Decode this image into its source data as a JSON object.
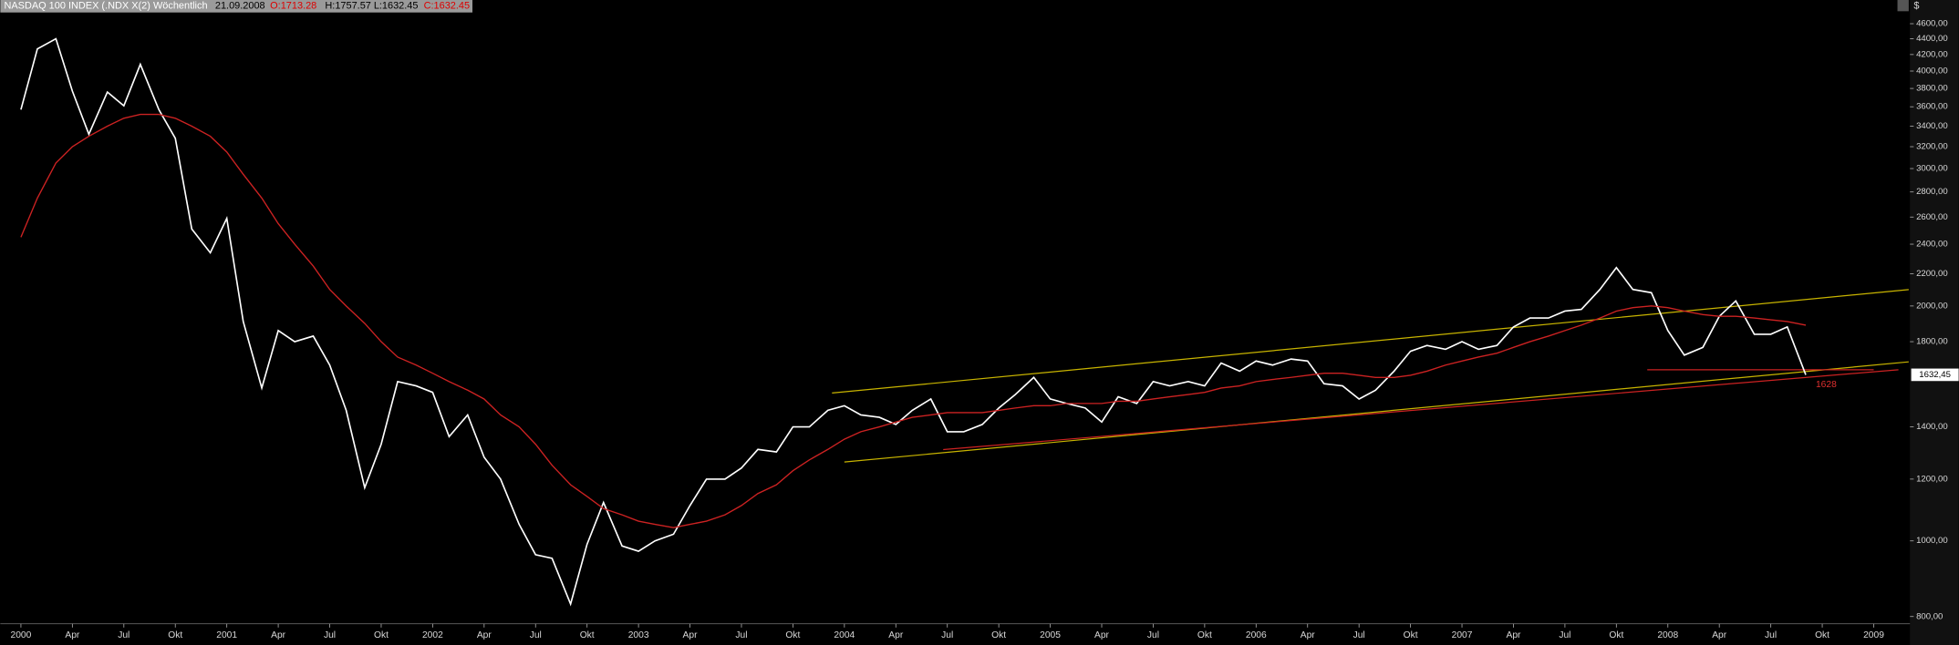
{
  "chart_data": {
    "type": "line",
    "header": [
      "NASDAQ 100 INDEX (.NDX X(2)  Wöchentlich",
      "21.09.2008",
      "O:1713.28",
      "H:1757.57",
      "L:1632.45",
      "C:1632.45"
    ],
    "currency": "$",
    "last_label": "1632,45",
    "annotation": "1628",
    "log_scale": true,
    "xlim": [
      1999.9,
      2009.17
    ],
    "ylim": [
      783,
      4790
    ],
    "xticks": [
      {
        "value": 2000,
        "label": "2000"
      },
      {
        "value": 2000.25,
        "label": "Apr"
      },
      {
        "value": 2000.5,
        "label": "Jul"
      },
      {
        "value": 2000.75,
        "label": "Okt"
      },
      {
        "value": 2001,
        "label": "2001"
      },
      {
        "value": 2001.25,
        "label": "Apr"
      },
      {
        "value": 2001.5,
        "label": "Jul"
      },
      {
        "value": 2001.75,
        "label": "Okt"
      },
      {
        "value": 2002,
        "label": "2002"
      },
      {
        "value": 2002.25,
        "label": "Apr"
      },
      {
        "value": 2002.5,
        "label": "Jul"
      },
      {
        "value": 2002.75,
        "label": "Okt"
      },
      {
        "value": 2003,
        "label": "2003"
      },
      {
        "value": 2003.25,
        "label": "Apr"
      },
      {
        "value": 2003.5,
        "label": "Jul"
      },
      {
        "value": 2003.75,
        "label": "Okt"
      },
      {
        "value": 2004,
        "label": "2004"
      },
      {
        "value": 2004.25,
        "label": "Apr"
      },
      {
        "value": 2004.5,
        "label": "Jul"
      },
      {
        "value": 2004.75,
        "label": "Okt"
      },
      {
        "value": 2005,
        "label": "2005"
      },
      {
        "value": 2005.25,
        "label": "Apr"
      },
      {
        "value": 2005.5,
        "label": "Jul"
      },
      {
        "value": 2005.75,
        "label": "Okt"
      },
      {
        "value": 2006,
        "label": "2006"
      },
      {
        "value": 2006.25,
        "label": "Apr"
      },
      {
        "value": 2006.5,
        "label": "Jul"
      },
      {
        "value": 2006.75,
        "label": "Okt"
      },
      {
        "value": 2007,
        "label": "2007"
      },
      {
        "value": 2007.25,
        "label": "Apr"
      },
      {
        "value": 2007.5,
        "label": "Jul"
      },
      {
        "value": 2007.75,
        "label": "Okt"
      },
      {
        "value": 2008,
        "label": "2008"
      },
      {
        "value": 2008.25,
        "label": "Apr"
      },
      {
        "value": 2008.5,
        "label": "Jul"
      },
      {
        "value": 2008.75,
        "label": "Okt"
      },
      {
        "value": 2009,
        "label": "2009"
      }
    ],
    "yticks": [
      {
        "value": 800,
        "label": "800,00"
      },
      {
        "value": 1000,
        "label": "1000,00"
      },
      {
        "value": 1200,
        "label": "1200,00"
      },
      {
        "value": 1400,
        "label": "1400,00"
      },
      {
        "value": 1800,
        "label": "1800,00"
      },
      {
        "value": 2000,
        "label": "2000,00"
      },
      {
        "value": 2200,
        "label": "2200,00"
      },
      {
        "value": 2400,
        "label": "2400,00"
      },
      {
        "value": 2600,
        "label": "2600,00"
      },
      {
        "value": 2800,
        "label": "2800,00"
      },
      {
        "value": 3000,
        "label": "3000,00"
      },
      {
        "value": 3200,
        "label": "3200,00"
      },
      {
        "value": 3400,
        "label": "3400,00"
      },
      {
        "value": 3600,
        "label": "3600,00"
      },
      {
        "value": 3800,
        "label": "3800,00"
      },
      {
        "value": 4000,
        "label": "4000,00"
      },
      {
        "value": 4200,
        "label": "4200,00"
      },
      {
        "value": 4400,
        "label": "4400,00"
      },
      {
        "value": 4600,
        "label": "4600,00"
      }
    ],
    "x": [
      2000,
      2000.08,
      2000.17,
      2000.25,
      2000.33,
      2000.42,
      2000.5,
      2000.58,
      2000.67,
      2000.75,
      2000.83,
      2000.92,
      2001,
      2001.08,
      2001.17,
      2001.25,
      2001.33,
      2001.42,
      2001.5,
      2001.58,
      2001.67,
      2001.75,
      2001.83,
      2001.92,
      2002,
      2002.08,
      2002.17,
      2002.25,
      2002.33,
      2002.42,
      2002.5,
      2002.58,
      2002.67,
      2002.75,
      2002.83,
      2002.92,
      2003,
      2003.08,
      2003.17,
      2003.25,
      2003.33,
      2003.42,
      2003.5,
      2003.58,
      2003.67,
      2003.75,
      2003.83,
      2003.92,
      2004,
      2004.08,
      2004.17,
      2004.25,
      2004.33,
      2004.42,
      2004.5,
      2004.58,
      2004.67,
      2004.75,
      2004.83,
      2004.92,
      2005,
      2005.08,
      2005.17,
      2005.25,
      2005.33,
      2005.42,
      2005.5,
      2005.58,
      2005.67,
      2005.75,
      2005.83,
      2005.92,
      2006,
      2006.08,
      2006.17,
      2006.25,
      2006.33,
      2006.42,
      2006.5,
      2006.58,
      2006.67,
      2006.75,
      2006.83,
      2006.92,
      2007,
      2007.08,
      2007.17,
      2007.25,
      2007.33,
      2007.42,
      2007.5,
      2007.58,
      2007.67,
      2007.75,
      2007.83,
      2007.92,
      2008,
      2008.08,
      2008.17,
      2008.25,
      2008.33,
      2008.42,
      2008.5,
      2008.58,
      2008.67
    ],
    "series": [
      {
        "color": "#ffffff",
        "values": [
          3570,
          4270,
          4400,
          3770,
          3320,
          3760,
          3610,
          4080,
          3570,
          3280,
          2510,
          2340,
          2590,
          1910,
          1570,
          1860,
          1800,
          1830,
          1680,
          1470,
          1170,
          1330,
          1600,
          1580,
          1550,
          1360,
          1450,
          1280,
          1200,
          1050,
          960,
          950,
          830,
          990,
          1120,
          985,
          970,
          1000,
          1020,
          1110,
          1200,
          1200,
          1240,
          1310,
          1300,
          1400,
          1400,
          1470,
          1490,
          1450,
          1440,
          1410,
          1470,
          1520,
          1380,
          1380,
          1410,
          1480,
          1540,
          1620,
          1520,
          1500,
          1480,
          1420,
          1530,
          1500,
          1600,
          1580,
          1600,
          1580,
          1690,
          1650,
          1700,
          1680,
          1710,
          1700,
          1590,
          1580,
          1520,
          1560,
          1650,
          1750,
          1780,
          1760,
          1800,
          1760,
          1780,
          1880,
          1930,
          1930,
          1970,
          1980,
          2100,
          2240,
          2100,
          2080,
          1860,
          1730,
          1770,
          1940,
          2030,
          1840,
          1840,
          1880,
          1632.45
        ]
      },
      {
        "color": "#cc2222",
        "values": [
          2450,
          2750,
          3050,
          3200,
          3300,
          3400,
          3480,
          3520,
          3520,
          3480,
          3400,
          3300,
          3150,
          2950,
          2750,
          2550,
          2400,
          2250,
          2100,
          2000,
          1900,
          1800,
          1720,
          1680,
          1640,
          1600,
          1560,
          1520,
          1450,
          1400,
          1330,
          1250,
          1180,
          1140,
          1100,
          1080,
          1060,
          1050,
          1040,
          1050,
          1060,
          1080,
          1110,
          1150,
          1180,
          1230,
          1270,
          1310,
          1350,
          1380,
          1400,
          1420,
          1440,
          1450,
          1460,
          1460,
          1460,
          1470,
          1480,
          1490,
          1490,
          1500,
          1500,
          1500,
          1510,
          1510,
          1520,
          1530,
          1540,
          1550,
          1570,
          1580,
          1600,
          1610,
          1620,
          1630,
          1640,
          1640,
          1630,
          1620,
          1620,
          1630,
          1650,
          1680,
          1700,
          1720,
          1740,
          1770,
          1800,
          1830,
          1860,
          1890,
          1930,
          1970,
          1990,
          2000,
          1990,
          1970,
          1950,
          1940,
          1940,
          1930,
          1920,
          1910,
          1890
        ]
      }
    ],
    "trend_lines": [
      {
        "color": "#c8b400",
        "x": [
          2003.94,
          2009.17
        ],
        "y": [
          1547,
          2099
        ]
      },
      {
        "color": "#c8b400",
        "x": [
          2004,
          2009.17
        ],
        "y": [
          1262,
          1696
        ]
      },
      {
        "color": "#cc2222",
        "x": [
          2004.48,
          2009.12
        ],
        "y": [
          1309,
          1657
        ]
      },
      {
        "color": "#cc2222",
        "x": [
          2007.9,
          2009.0
        ],
        "y": [
          1657,
          1657
        ]
      }
    ]
  }
}
